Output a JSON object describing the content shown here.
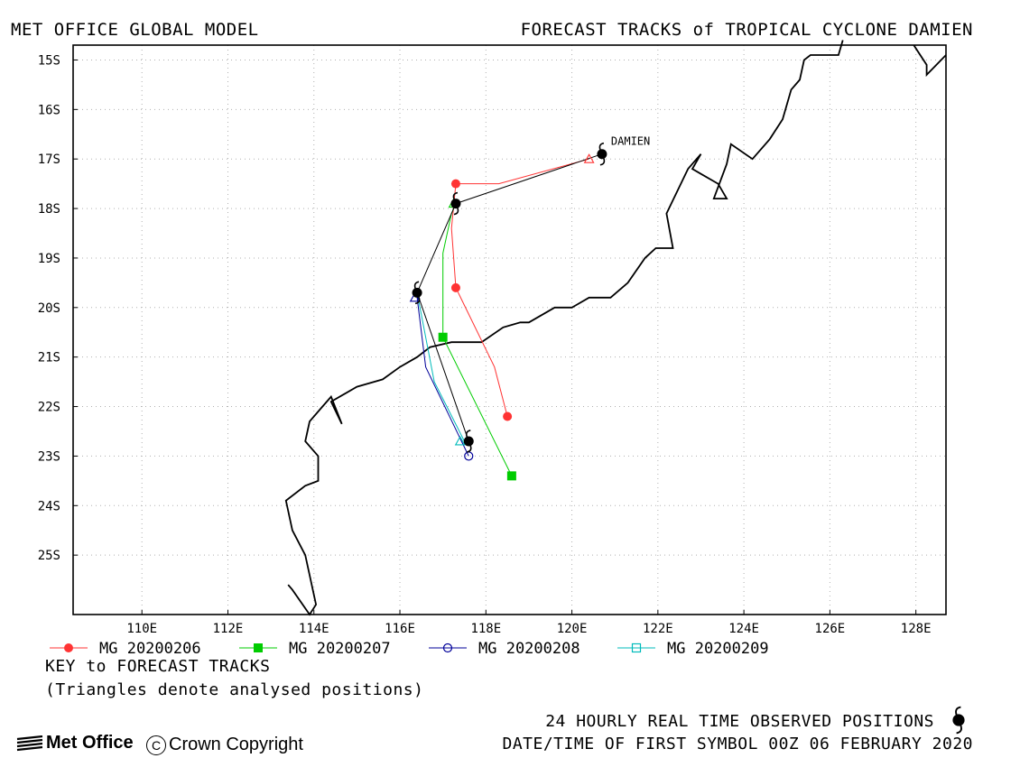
{
  "header": {
    "left": "MET OFFICE GLOBAL MODEL",
    "right": "FORECAST TRACKS of TROPICAL CYCLONE DAMIEN"
  },
  "chart_data": {
    "type": "line",
    "title": "FORECAST TRACKS of TROPICAL CYCLONE DAMIEN",
    "xlim": [
      108.4,
      128.7
    ],
    "ylim": [
      -26.2,
      -14.7
    ],
    "x_ticks": [
      110,
      112,
      114,
      116,
      118,
      120,
      122,
      124,
      126,
      128
    ],
    "x_tick_labels": [
      "110E",
      "112E",
      "114E",
      "116E",
      "118E",
      "120E",
      "122E",
      "124E",
      "126E",
      "128E"
    ],
    "y_ticks": [
      -15,
      -16,
      -17,
      -18,
      -19,
      -20,
      -21,
      -22,
      -23,
      -24,
      -25
    ],
    "y_tick_labels": [
      "15S",
      "16S",
      "17S",
      "18S",
      "19S",
      "20S",
      "21S",
      "22S",
      "23S",
      "24S",
      "25S"
    ],
    "grid": true,
    "legend_position": "bottom",
    "storm_label": "DAMIEN",
    "series": [
      {
        "name": "MG 20200206",
        "color": "#ff3333",
        "marker": "filled-circle",
        "lon": [
          120.4,
          118.3,
          117.3,
          117.2,
          117.3,
          118.2,
          118.5
        ],
        "lat": [
          -17.0,
          -17.5,
          -17.5,
          -18.4,
          -19.6,
          -21.2,
          -22.2
        ],
        "marked": [
          false,
          false,
          true,
          false,
          true,
          false,
          true
        ]
      },
      {
        "name": "MG 20200207",
        "color": "#00cc00",
        "marker": "filled-square",
        "lon": [
          117.3,
          117.2,
          117.0,
          117.0,
          118.6
        ],
        "lat": [
          -17.9,
          -18.1,
          -18.9,
          -20.6,
          -23.4
        ],
        "marked": [
          false,
          false,
          false,
          true,
          true
        ]
      },
      {
        "name": "MG 20200208",
        "color": "#000099",
        "marker": "open-circle",
        "lon": [
          116.4,
          116.6,
          117.6
        ],
        "lat": [
          -19.8,
          -21.2,
          -23.0
        ],
        "marked": [
          false,
          false,
          true
        ]
      },
      {
        "name": "MG 20200209",
        "color": "#00bbbb",
        "marker": "open-square",
        "lon": [
          116.4,
          116.8,
          117.5
        ],
        "lat": [
          -19.7,
          -21.5,
          -22.7
        ],
        "marked": [
          false,
          false,
          false
        ]
      }
    ],
    "observed_track": {
      "name": "24 HOURLY REAL TIME OBSERVED POSITIONS",
      "color": "#000000",
      "lon": [
        120.7,
        117.3,
        116.4,
        117.6
      ],
      "lat": [
        -16.9,
        -17.9,
        -19.7,
        -22.7
      ]
    },
    "analysed_positions": [
      {
        "lon": 120.4,
        "lat": -17.0,
        "color": "#ff3333"
      },
      {
        "lon": 117.25,
        "lat": -17.9,
        "color": "#00cc00"
      },
      {
        "lon": 116.35,
        "lat": -19.8,
        "color": "#000099"
      },
      {
        "lon": 117.4,
        "lat": -22.7,
        "color": "#00bbbb"
      }
    ],
    "coastline": {
      "lon": [
        113.4,
        113.5,
        113.9,
        114.05,
        113.8,
        113.5,
        113.35,
        113.8,
        114.1,
        114.1,
        113.8,
        113.9,
        114.2,
        114.4,
        114.65,
        114.4,
        115.0,
        115.6,
        116.0,
        116.4,
        116.7,
        117.2,
        117.9,
        118.4,
        118.8,
        119.0,
        119.6,
        120.0,
        120.4,
        120.9,
        121.3,
        121.7,
        121.95,
        122.35,
        122.2,
        122.7,
        123.0,
        122.8,
        123.0,
        123.4,
        123.6,
        123.3,
        123.6,
        123.7,
        124.2,
        124.6,
        124.9,
        125.1,
        125.3,
        125.4,
        125.55,
        126.2,
        126.3
      ],
      "lat": [
        -25.6,
        -25.7,
        -26.2,
        -26.0,
        -25.0,
        -24.5,
        -23.9,
        -23.6,
        -23.5,
        -23.0,
        -22.7,
        -22.3,
        -22.0,
        -21.8,
        -22.35,
        -21.9,
        -21.6,
        -21.45,
        -21.2,
        -21.0,
        -20.8,
        -20.7,
        -20.7,
        -20.4,
        -20.3,
        -20.3,
        -20.0,
        -20.0,
        -19.8,
        -19.8,
        -19.5,
        -19.0,
        -18.8,
        -18.8,
        -18.1,
        -17.2,
        -16.9,
        -17.2,
        -17.3,
        -17.5,
        -17.8,
        -17.8,
        -17.1,
        -16.7,
        -17.0,
        -16.6,
        -16.2,
        -15.6,
        -15.4,
        -15.0,
        -14.9,
        -14.9,
        -14.6
      ],
      "lon2": [
        127.95,
        128.25,
        128.25,
        128.7
      ],
      "lat2": [
        -14.7,
        -15.1,
        -15.3,
        -14.9
      ]
    }
  },
  "footer": {
    "key_title": "KEY to FORECAST TRACKS",
    "key_note": "(Triangles denote analysed positions)",
    "observed": "24 HOURLY REAL TIME OBSERVED POSITIONS",
    "datetime": "DATE/TIME OF FIRST SYMBOL 00Z 06 FEBRUARY 2020",
    "logo": "Met Office",
    "copyright_symbol": "C",
    "copyright": "Crown Copyright"
  }
}
